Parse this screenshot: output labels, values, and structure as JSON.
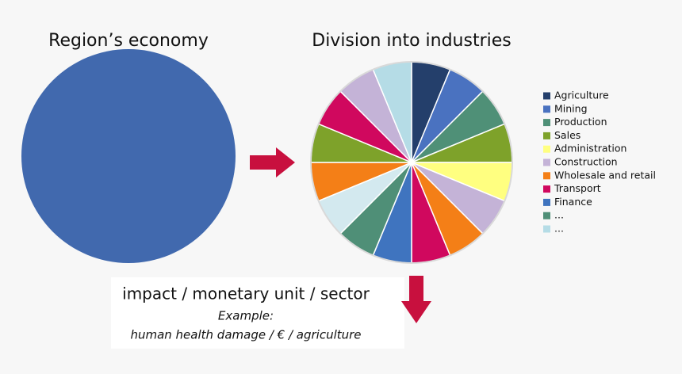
{
  "left_title": "Region’s economy",
  "left_color": "#4169ae",
  "right_title": "Division into industries",
  "arrow_color": "#c8103e",
  "pie": {
    "slices": [
      {
        "value": 6.25,
        "color": "#243f6b"
      },
      {
        "value": 6.25,
        "color": "#4a72c0"
      },
      {
        "value": 6.25,
        "color": "#4f9077"
      },
      {
        "value": 6.25,
        "color": "#7ea22a"
      },
      {
        "value": 6.25,
        "color": "#ffff80"
      },
      {
        "value": 6.25,
        "color": "#c4b3d7"
      },
      {
        "value": 6.25,
        "color": "#f47f17"
      },
      {
        "value": 6.25,
        "color": "#d0085e"
      },
      {
        "value": 6.25,
        "color": "#3f74bf"
      },
      {
        "value": 6.25,
        "color": "#4f8f77"
      },
      {
        "value": 6.25,
        "color": "#d3e9ef"
      },
      {
        "value": 6.25,
        "color": "#f47f17"
      },
      {
        "value": 6.25,
        "color": "#7ea22a"
      },
      {
        "value": 6.25,
        "color": "#d0085e"
      },
      {
        "value": 6.25,
        "color": "#c4b3d7"
      },
      {
        "value": 6.25,
        "color": "#b5dce6"
      }
    ],
    "legend": [
      {
        "name": "Agriculture",
        "color": "#243f6b"
      },
      {
        "name": "Mining",
        "color": "#4a72c0"
      },
      {
        "name": "Production",
        "color": "#4f9077"
      },
      {
        "name": "Sales",
        "color": "#7ea22a"
      },
      {
        "name": "Administration",
        "color": "#ffff80"
      },
      {
        "name": "Construction",
        "color": "#c4b3d7"
      },
      {
        "name": "Wholesale and retail",
        "color": "#f47f17"
      },
      {
        "name": "Transport",
        "color": "#d0085e"
      },
      {
        "name": "Finance",
        "color": "#3f74bf"
      },
      {
        "name": "...",
        "color": "#4f8f77"
      },
      {
        "name": "...",
        "color": "#b5dce6"
      }
    ]
  },
  "box": {
    "line1": "impact / monetary unit / sector",
    "line2": "Example:",
    "line3": "human health damage / € / agriculture"
  }
}
